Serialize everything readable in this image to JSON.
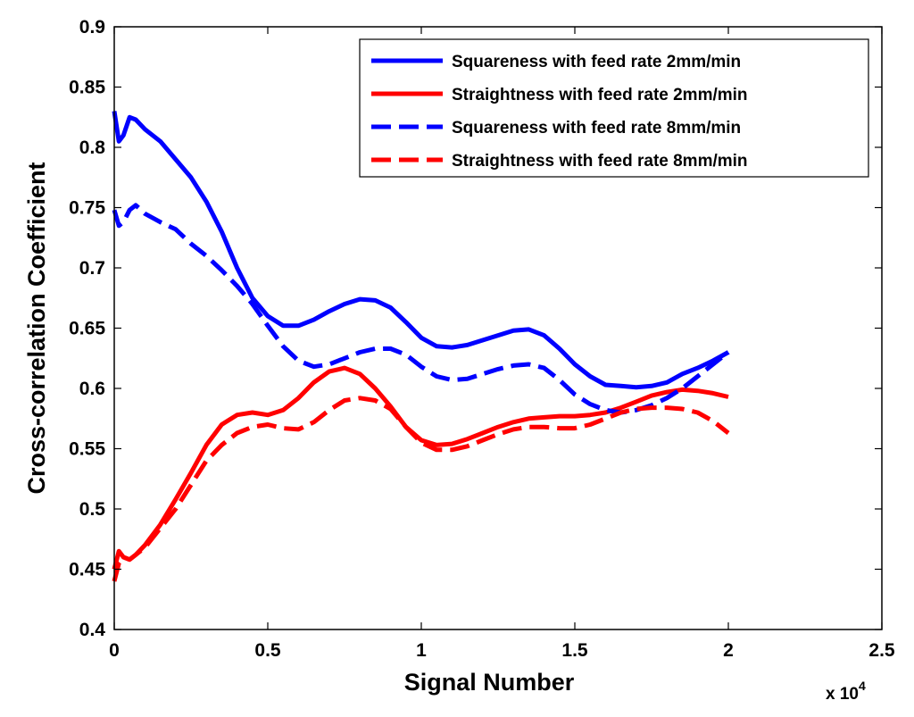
{
  "chart_data": {
    "type": "line",
    "title": "",
    "xlabel": "Signal Number",
    "ylabel": "Cross-correlation Coefficient",
    "xlim": [
      0,
      25000
    ],
    "ylim": [
      0.4,
      0.9
    ],
    "x_ticks": [
      0,
      0.5,
      1,
      1.5,
      2,
      2.5
    ],
    "x_tick_labels": [
      "0",
      "0.5",
      "1",
      "1.5",
      "2",
      "2.5"
    ],
    "x_multiplier": {
      "base": "x 10",
      "exponent": "4"
    },
    "y_ticks": [
      0.4,
      0.45,
      0.5,
      0.55,
      0.6,
      0.65,
      0.7,
      0.75,
      0.8,
      0.85,
      0.9
    ],
    "y_tick_labels": [
      "0.4",
      "0.45",
      "0.5",
      "0.55",
      "0.6",
      "0.65",
      "0.7",
      "0.75",
      "0.8",
      "0.85",
      "0.9"
    ],
    "grid": false,
    "legend_position": "top-right",
    "series": [
      {
        "name": "Squareness with feed rate 2mm/min",
        "color": "#0000ff",
        "style": "solid",
        "x": [
          0,
          150,
          300,
          500,
          700,
          1000,
          1500,
          2000,
          2500,
          3000,
          3500,
          4000,
          4500,
          5000,
          5500,
          6000,
          6500,
          7000,
          7500,
          8000,
          8500,
          9000,
          9500,
          10000,
          10500,
          11000,
          11500,
          12000,
          12500,
          13000,
          13500,
          14000,
          14500,
          15000,
          15500,
          16000,
          16500,
          17000,
          17500,
          18000,
          18500,
          19000,
          19500,
          20000
        ],
        "y": [
          0.83,
          0.805,
          0.81,
          0.825,
          0.823,
          0.815,
          0.805,
          0.79,
          0.775,
          0.755,
          0.73,
          0.7,
          0.675,
          0.66,
          0.652,
          0.652,
          0.657,
          0.664,
          0.67,
          0.674,
          0.673,
          0.667,
          0.655,
          0.642,
          0.635,
          0.634,
          0.636,
          0.64,
          0.644,
          0.648,
          0.649,
          0.644,
          0.633,
          0.62,
          0.61,
          0.603,
          0.602,
          0.601,
          0.602,
          0.605,
          0.612,
          0.617,
          0.623,
          0.63
        ]
      },
      {
        "name": "Straightness with feed rate 2mm/min",
        "color": "#ff0000",
        "style": "solid",
        "x": [
          0,
          150,
          300,
          500,
          700,
          1000,
          1500,
          2000,
          2500,
          3000,
          3500,
          4000,
          4500,
          5000,
          5500,
          6000,
          6500,
          7000,
          7500,
          8000,
          8500,
          9000,
          9500,
          10000,
          10500,
          11000,
          11500,
          12000,
          12500,
          13000,
          13500,
          14000,
          14500,
          15000,
          15500,
          16000,
          16500,
          17000,
          17500,
          18000,
          18500,
          19000,
          19500,
          20000
        ],
        "y": [
          0.45,
          0.465,
          0.46,
          0.458,
          0.462,
          0.47,
          0.487,
          0.508,
          0.53,
          0.553,
          0.57,
          0.578,
          0.58,
          0.578,
          0.582,
          0.592,
          0.605,
          0.614,
          0.617,
          0.612,
          0.6,
          0.585,
          0.568,
          0.557,
          0.553,
          0.554,
          0.558,
          0.563,
          0.568,
          0.572,
          0.575,
          0.576,
          0.577,
          0.577,
          0.578,
          0.58,
          0.584,
          0.589,
          0.594,
          0.597,
          0.599,
          0.598,
          0.596,
          0.593
        ]
      },
      {
        "name": "Squareness with feed rate 8mm/min",
        "color": "#0000ff",
        "style": "dashed",
        "x": [
          0,
          150,
          300,
          500,
          700,
          1000,
          1500,
          2000,
          2500,
          3000,
          3500,
          4000,
          4500,
          5000,
          5500,
          6000,
          6500,
          7000,
          7500,
          8000,
          8500,
          9000,
          9500,
          10000,
          10500,
          11000,
          11500,
          12000,
          12500,
          13000,
          13500,
          14000,
          14500,
          15000,
          15500,
          16000,
          16500,
          17000,
          17500,
          18000,
          18500,
          19000,
          19500,
          20000
        ],
        "y": [
          0.748,
          0.735,
          0.738,
          0.748,
          0.752,
          0.745,
          0.738,
          0.732,
          0.72,
          0.71,
          0.698,
          0.685,
          0.67,
          0.652,
          0.635,
          0.623,
          0.618,
          0.62,
          0.625,
          0.63,
          0.633,
          0.633,
          0.628,
          0.618,
          0.61,
          0.607,
          0.608,
          0.612,
          0.616,
          0.619,
          0.62,
          0.617,
          0.607,
          0.595,
          0.587,
          0.582,
          0.58,
          0.582,
          0.586,
          0.592,
          0.6,
          0.61,
          0.62,
          0.63
        ]
      },
      {
        "name": "Straightness with feed rate 8mm/min",
        "color": "#ff0000",
        "style": "dashed",
        "x": [
          0,
          150,
          300,
          500,
          700,
          1000,
          1500,
          2000,
          2500,
          3000,
          3500,
          4000,
          4500,
          5000,
          5500,
          6000,
          6500,
          7000,
          7500,
          8000,
          8500,
          9000,
          9500,
          10000,
          10500,
          11000,
          11500,
          12000,
          12500,
          13000,
          13500,
          14000,
          14500,
          15000,
          15500,
          16000,
          16500,
          17000,
          17500,
          18000,
          18500,
          19000,
          19500,
          20000
        ],
        "y": [
          0.44,
          0.455,
          0.46,
          0.458,
          0.462,
          0.468,
          0.484,
          0.5,
          0.52,
          0.54,
          0.553,
          0.563,
          0.568,
          0.57,
          0.567,
          0.566,
          0.572,
          0.582,
          0.59,
          0.592,
          0.59,
          0.583,
          0.568,
          0.555,
          0.549,
          0.549,
          0.552,
          0.557,
          0.562,
          0.566,
          0.568,
          0.568,
          0.567,
          0.567,
          0.57,
          0.575,
          0.58,
          0.583,
          0.584,
          0.584,
          0.583,
          0.58,
          0.573,
          0.563
        ]
      }
    ]
  }
}
